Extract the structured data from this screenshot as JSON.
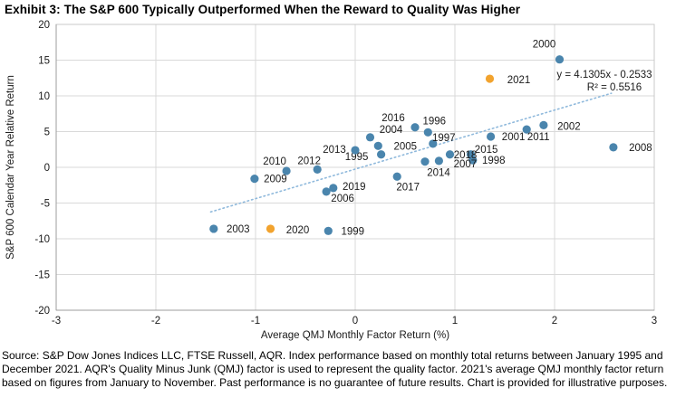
{
  "title": "Exhibit 3: The S&P 600 Typically Outperformed When the Reward to Quality Was Higher",
  "source_text": "Source: S&P Dow Jones Indices LLC, FTSE Russell, AQR. Index performance based on monthly total returns between January 1995 and December 2021. AQR's Quality Minus Junk (QMJ) factor is used to represent the quality factor. 2021's average QMJ monthly factor return based on figures from January to November. Past performance is no guarantee of future results. Chart is provided for illustrative purposes.",
  "chart_data": {
    "type": "scatter",
    "title": "Exhibit 3: The S&P 600 Typically Outperformed When the Reward to Quality Was Higher",
    "xlabel": "Average QMJ Monthly Factor Return (%)",
    "ylabel": "S&P 600 Calendar Year Relative Return",
    "xlim": [
      -3,
      3
    ],
    "ylim": [
      -20,
      20
    ],
    "x_ticks": [
      -3,
      -2,
      -1,
      0,
      1,
      2,
      3
    ],
    "y_ticks": [
      20,
      15,
      10,
      5,
      0,
      -5,
      -10,
      -15,
      -20
    ],
    "grid": true,
    "legend": "none",
    "colors": {
      "blue_point": "#4a85ad",
      "highlight_point": "#f2a32e",
      "trendline": "#8fb9dc",
      "grid": "#d9d9d9",
      "border": "#c8c8c8",
      "axis": "#9e9e9e",
      "text": "#1a1a1a"
    },
    "series": [
      {
        "name": "S&P 600 years (blue)",
        "color_key": "blue_point",
        "points": [
          {
            "label": "1995",
            "x": 0.26,
            "y": 1.8,
            "dx": -27,
            "dy": 2
          },
          {
            "label": "1996",
            "x": 0.73,
            "y": 4.9,
            "dx": 7,
            "dy": -13
          },
          {
            "label": "1997",
            "x": 0.78,
            "y": 3.3,
            "dx": 12,
            "dy": -7
          },
          {
            "label": "1998",
            "x": 1.18,
            "y": 1.0,
            "dx": 23,
            "dy": 0
          },
          {
            "label": "1999",
            "x": -0.27,
            "y": -8.9,
            "dx": 27,
            "dy": 0
          },
          {
            "label": "2000",
            "x": 2.05,
            "y": 15.1,
            "dx": -17,
            "dy": -17
          },
          {
            "label": "2001",
            "x": 1.36,
            "y": 4.3,
            "dx": 25,
            "dy": 0
          },
          {
            "label": "2002",
            "x": 1.89,
            "y": 5.9,
            "dx": 28,
            "dy": 1
          },
          {
            "label": "2003",
            "x": -1.42,
            "y": -8.6,
            "dx": 27,
            "dy": 0
          },
          {
            "label": "2004",
            "x": 0.15,
            "y": 4.2,
            "dx": 23,
            "dy": -9
          },
          {
            "label": "2005",
            "x": 0.23,
            "y": 3.0,
            "dx": 30,
            "dy": 0
          },
          {
            "label": "2006",
            "x": -0.29,
            "y": -3.4,
            "dx": 18,
            "dy": 7
          },
          {
            "label": "2007",
            "x": 0.84,
            "y": 0.9,
            "dx": 29,
            "dy": 3
          },
          {
            "label": "2008",
            "x": 2.59,
            "y": 2.8,
            "dx": 30,
            "dy": 0
          },
          {
            "label": "2009",
            "x": -1.01,
            "y": -1.6,
            "dx": 23,
            "dy": 0
          },
          {
            "label": "2010",
            "x": -0.69,
            "y": -0.5,
            "dx": -13,
            "dy": -11
          },
          {
            "label": "2011",
            "x": 1.72,
            "y": 5.3,
            "dx": 13,
            "dy": 8
          },
          {
            "label": "2012",
            "x": -0.38,
            "y": -0.3,
            "dx": -9,
            "dy": -10
          },
          {
            "label": "2013",
            "x": 0.0,
            "y": 2.4,
            "dx": -23,
            "dy": -1
          },
          {
            "label": "2014",
            "x": 0.7,
            "y": 0.8,
            "dx": 15,
            "dy": 12
          },
          {
            "label": "2015",
            "x": 1.16,
            "y": 1.8,
            "dx": 17,
            "dy": -6
          },
          {
            "label": "2016",
            "x": 0.6,
            "y": 5.6,
            "dx": -24,
            "dy": -11
          },
          {
            "label": "2017",
            "x": 0.42,
            "y": -1.3,
            "dx": 12,
            "dy": 11
          },
          {
            "label": "2018",
            "x": 0.95,
            "y": 1.8,
            "dx": 17,
            "dy": 0
          },
          {
            "label": "2019",
            "x": -0.22,
            "y": -2.9,
            "dx": 23,
            "dy": -2
          }
        ]
      },
      {
        "name": "Highlighted years (orange)",
        "color_key": "highlight_point",
        "points": [
          {
            "label": "2020",
            "x": -0.85,
            "y": -8.6,
            "dx": 30,
            "dy": 1
          },
          {
            "label": "2021",
            "x": 1.35,
            "y": 12.4,
            "dx": 32,
            "dy": 1
          }
        ]
      }
    ],
    "trendline": {
      "equation": "y = 4.1305x - 0.2533",
      "r_squared": "R² = 0.5516",
      "slope": 4.1305,
      "intercept": -0.2533,
      "x_range": [
        -1.45,
        2.57
      ],
      "style": "dotted"
    }
  }
}
